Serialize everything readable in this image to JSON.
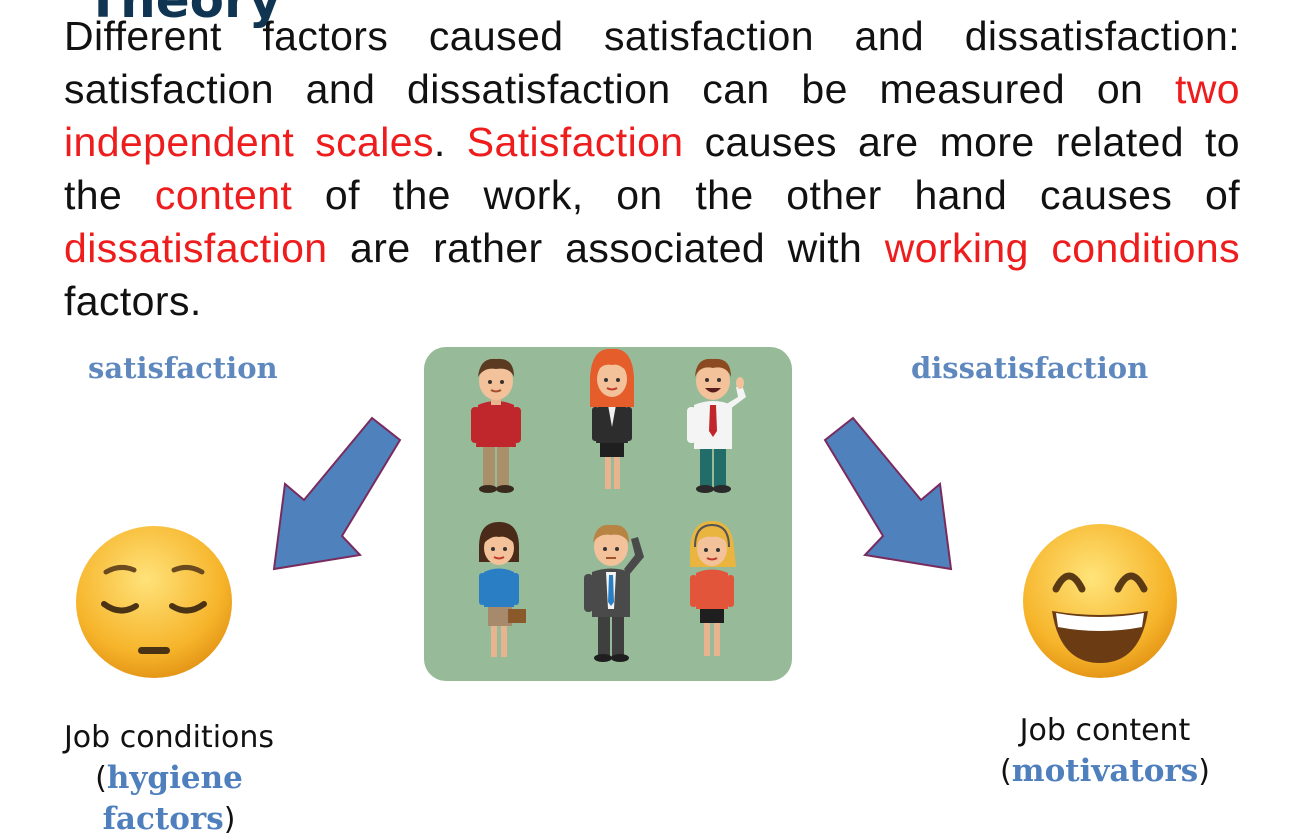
{
  "slide": {
    "title_fragment": "Theory",
    "paragraph": [
      {
        "text": "Different factors caused satisfaction and dissatisfaction: satisfaction and dissatisfaction can be measured on ",
        "highlight": false
      },
      {
        "text": "two independent scales",
        "highlight": true
      },
      {
        "text": ". ",
        "highlight": false
      },
      {
        "text": "Satisfaction",
        "highlight": true
      },
      {
        "text": " causes are more related to the ",
        "highlight": false
      },
      {
        "text": "content",
        "highlight": true
      },
      {
        "text": " of the work, on the other hand causes of ",
        "highlight": false
      },
      {
        "text": "dissatisfaction",
        "highlight": true
      },
      {
        "text": " are rather associated with ",
        "highlight": false
      },
      {
        "text": "working conditions",
        "highlight": true
      },
      {
        "text": " factors.",
        "highlight": false
      }
    ],
    "left_label": "satisfaction",
    "right_label": "dissatisfaction",
    "left_caption": {
      "line1": "Job conditions",
      "open": "(",
      "emph": "hygiene factors",
      "close": ")"
    },
    "right_caption": {
      "line1": "Job content",
      "open": "(",
      "emph": "motivators",
      "close": ")"
    },
    "colors": {
      "highlight": "#ee1c1c",
      "label_blue": "#5f88bf",
      "arrow_fill": "#4f81bd",
      "arrow_stroke": "#7a2b5e",
      "panel_green": "#97bb99"
    },
    "icons": [
      "sad-face-emoji",
      "happy-face-emoji",
      "people-illustration",
      "down-left-arrow",
      "down-right-arrow"
    ]
  }
}
